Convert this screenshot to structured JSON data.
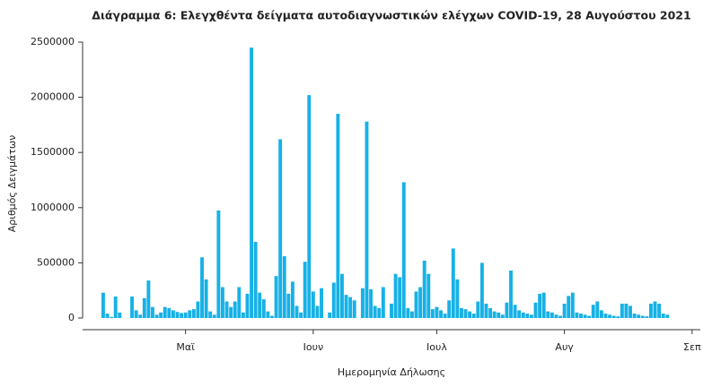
{
  "chart_data": {
    "type": "bar",
    "title": "Διάγραμμα 6: Ελεγχθέντα δείγματα αυτοδιαγνωστικών ελέγχων COVID-19, 28 Αυγούστου 2021",
    "x_label": "Ημερομηνία Δήλωσης",
    "y_label": "Αριθμός Δειγμάτων",
    "color": "#17b1e6",
    "categories": [
      null,
      null,
      null,
      null,
      null,
      null,
      null,
      null,
      null,
      null,
      null,
      null,
      null,
      null,
      null,
      null,
      null,
      null,
      null,
      null,
      null,
      null,
      null,
      null,
      null,
      null,
      null,
      null,
      null,
      null,
      null,
      null,
      null,
      null,
      null,
      null,
      null,
      null,
      null,
      null,
      null,
      null,
      null,
      null,
      null,
      null,
      null,
      null,
      null,
      null,
      null,
      null,
      null,
      null,
      null,
      null,
      null,
      null,
      null,
      null,
      null,
      null,
      null,
      null,
      null,
      null,
      null,
      null,
      null,
      null,
      null,
      null,
      null,
      null,
      null,
      null,
      null,
      null,
      null,
      null,
      null,
      null,
      null,
      null,
      null,
      null,
      null,
      null,
      null,
      null,
      null,
      null,
      null,
      null,
      null,
      null,
      null,
      null,
      null,
      null,
      null,
      null,
      null,
      null,
      null,
      null,
      null,
      null,
      null,
      null,
      null,
      null,
      null,
      null,
      null,
      null,
      null,
      null,
      null,
      null,
      null,
      null,
      null,
      null,
      null,
      null,
      null,
      null,
      null,
      null,
      null,
      null,
      null,
      null,
      null,
      null,
      null,
      null
    ],
    "values": [
      230000,
      40000,
      10000,
      195000,
      50000,
      0,
      0,
      195000,
      70000,
      30000,
      180000,
      340000,
      100000,
      30000,
      50000,
      100000,
      90000,
      70000,
      55000,
      45000,
      50000,
      70000,
      80000,
      150000,
      550000,
      350000,
      60000,
      30000,
      975000,
      280000,
      150000,
      100000,
      150000,
      280000,
      50000,
      220000,
      2450000,
      690000,
      230000,
      170000,
      60000,
      20000,
      380000,
      1620000,
      560000,
      220000,
      330000,
      110000,
      50000,
      510000,
      2020000,
      240000,
      110000,
      270000,
      0,
      50000,
      320000,
      1850000,
      400000,
      210000,
      190000,
      160000,
      0,
      270000,
      1780000,
      260000,
      110000,
      90000,
      280000,
      0,
      130000,
      400000,
      370000,
      1230000,
      90000,
      60000,
      240000,
      280000,
      520000,
      400000,
      80000,
      100000,
      70000,
      40000,
      160000,
      630000,
      350000,
      90000,
      80000,
      60000,
      40000,
      150000,
      500000,
      130000,
      90000,
      60000,
      50000,
      30000,
      140000,
      430000,
      120000,
      70000,
      50000,
      40000,
      30000,
      140000,
      220000,
      230000,
      60000,
      50000,
      30000,
      20000,
      130000,
      200000,
      230000,
      50000,
      40000,
      30000,
      20000,
      120000,
      150000,
      70000,
      40000,
      30000,
      20000,
      15000,
      130000,
      130000,
      110000,
      40000,
      30000,
      20000,
      15000,
      130000,
      150000,
      130000,
      40000,
      30000
    ],
    "xlim": [
      -5,
      145
    ],
    "xticks": [
      {
        "value": 20,
        "label": "Μαϊ"
      },
      {
        "value": 51,
        "label": "Ιουν"
      },
      {
        "value": 81,
        "label": "Ιουλ"
      },
      {
        "value": 112,
        "label": "Αυγ"
      },
      {
        "value": 143,
        "label": "Σεπ"
      }
    ],
    "ylim": [
      0,
      2500000
    ],
    "yticks": [
      0,
      500000,
      1000000,
      1500000,
      2000000,
      2500000
    ]
  }
}
